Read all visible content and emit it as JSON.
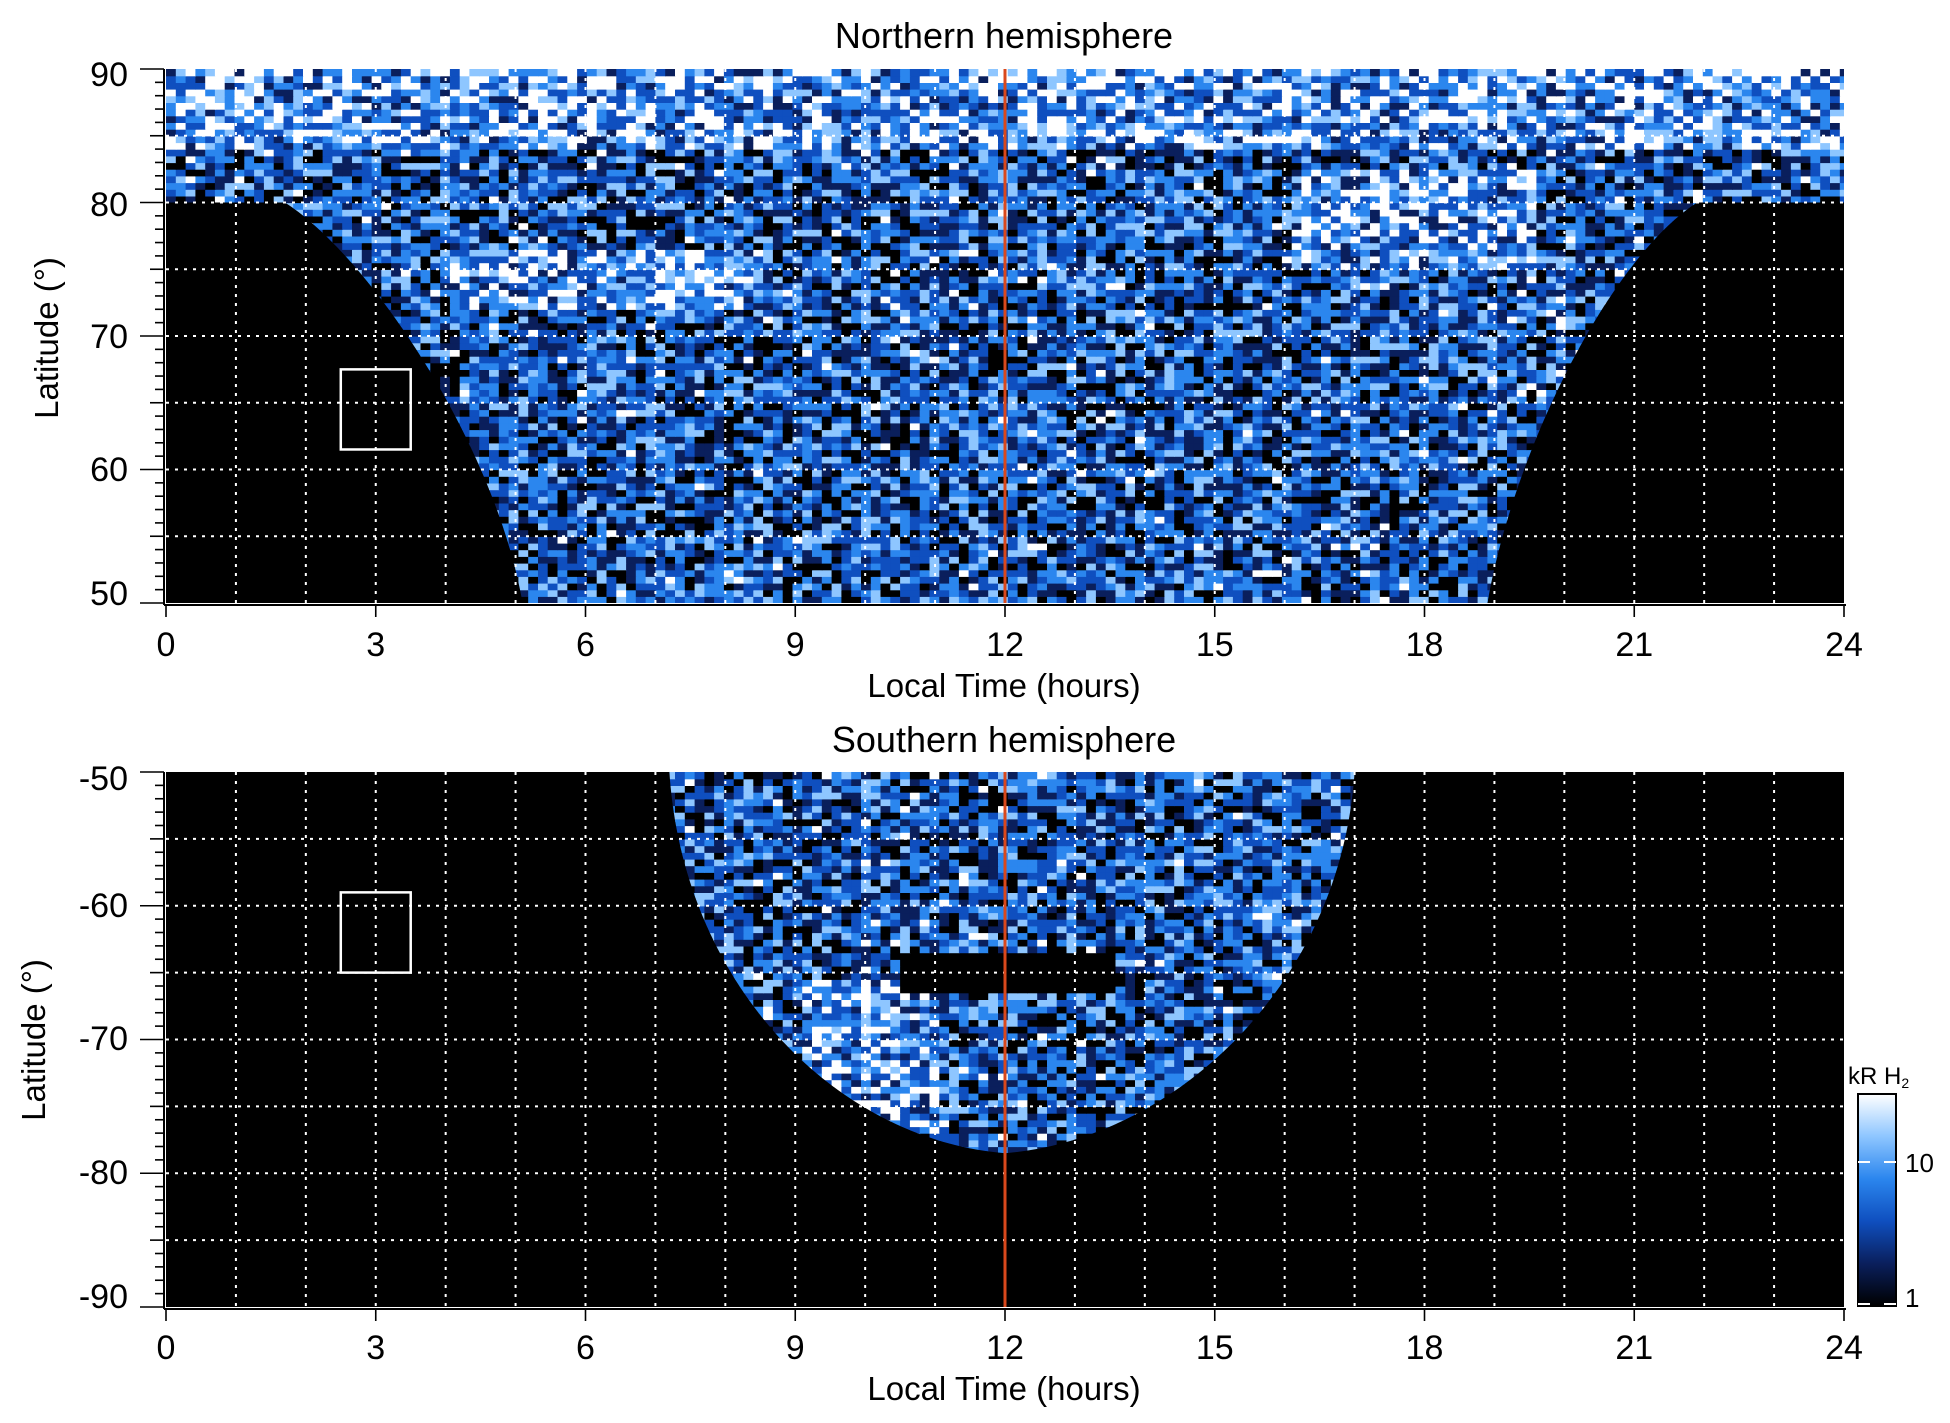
{
  "chart_data": [
    {
      "type": "heatmap",
      "title": "Northern hemisphere",
      "xlabel": "Local Time (hours)",
      "ylabel": "Latitude (°)",
      "xlim": [
        0,
        24
      ],
      "ylim": [
        50,
        90
      ],
      "x_ticks": [
        "0",
        "3",
        "6",
        "9",
        "12",
        "15",
        "18",
        "21",
        "24"
      ],
      "y_ticks": [
        "90",
        "80",
        "70",
        "60",
        "50"
      ],
      "grid": "dotted white, every 1 hour and every 5°",
      "noon_line_local_time": 12,
      "noon_line_color": "#d9481c",
      "box": {
        "local_time": [
          2.5,
          3.5
        ],
        "latitude": [
          61.5,
          67.5
        ]
      },
      "emission_region": {
        "latitude": [
          50,
          90
        ],
        "local_time_at_50deg": [
          5.1,
          18.9
        ],
        "local_time_at_80deg": [
          1.7,
          21.9
        ],
        "bright_arcs": [
          {
            "local_time": [
              4,
              8.5
            ],
            "latitude": [
              72,
              76
            ]
          },
          {
            "local_time": [
              16,
              19.5
            ],
            "latitude": [
              75,
              82
            ]
          },
          {
            "local_time": [
              0,
              24
            ],
            "latitude": [
              84,
              90
            ]
          }
        ]
      }
    },
    {
      "type": "heatmap",
      "title": "Southern hemisphere",
      "xlabel": "Local Time (hours)",
      "ylabel": "Latitude (°)",
      "xlim": [
        0,
        24
      ],
      "ylim": [
        -90,
        -50
      ],
      "x_ticks": [
        "0",
        "3",
        "6",
        "9",
        "12",
        "15",
        "18",
        "21",
        "24"
      ],
      "y_ticks": [
        "-50",
        "-60",
        "-70",
        "-80",
        "-90"
      ],
      "grid": "dotted white, every 1 hour and every 5°",
      "noon_line_local_time": 12,
      "noon_line_color": "#d9481c",
      "box": {
        "local_time": [
          2.5,
          3.5
        ],
        "latitude": [
          -65,
          -59
        ]
      },
      "emission_region": {
        "latitude": [
          -78.5,
          -50
        ],
        "local_time_at_minus50deg": [
          7.2,
          17
        ],
        "dark_gap": {
          "local_time": [
            10.5,
            13.5
          ],
          "latitude": [
            -66.5,
            -64
          ]
        },
        "bright_arcs": [
          {
            "local_time": [
              9,
              11
            ],
            "latitude": [
              -77,
              -66
            ]
          }
        ]
      }
    }
  ],
  "colorbar": {
    "title": "kR H",
    "title_subscript": "2",
    "ticks": [
      "10",
      "1"
    ],
    "scale": "log",
    "colors": [
      "#000000",
      "#0a1f5c",
      "#0f4fbf",
      "#2b86ee",
      "#8ec6ff",
      "#ffffff"
    ]
  }
}
